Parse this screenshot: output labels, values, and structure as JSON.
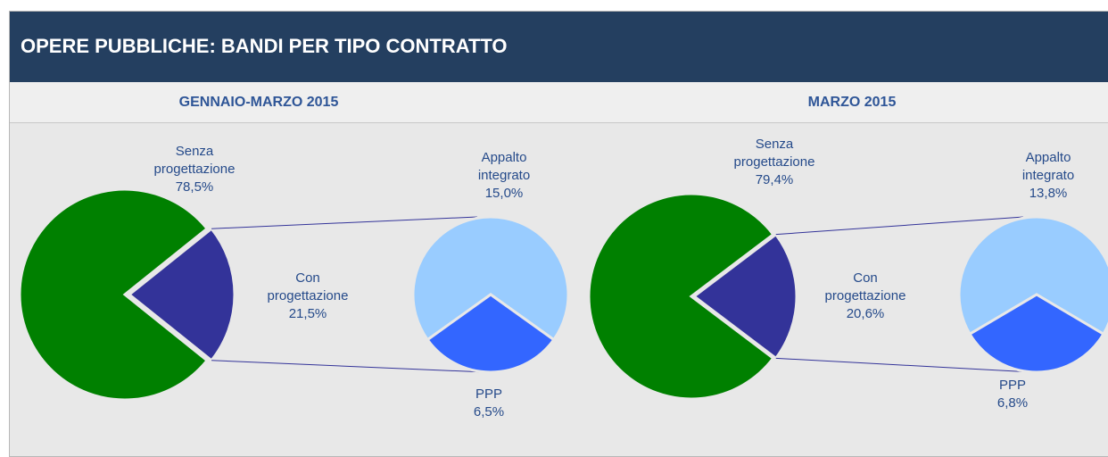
{
  "title": "OPERE PUBBLICHE: BANDI PER TIPO CONTRATTO",
  "chart_data": [
    {
      "type": "pie-of-pie",
      "title": "GENNAIO-MARZO 2015",
      "categories": [
        "Senza progettazione",
        "Con progettazione"
      ],
      "values": [
        78.5,
        21.5
      ],
      "value_labels": [
        "78,5%",
        "21,5%"
      ],
      "colors": [
        "#008000",
        "#333399"
      ],
      "secondary": {
        "categories": [
          "Appalto integrato",
          "PPP"
        ],
        "values": [
          15.0,
          6.5
        ],
        "value_labels": [
          "15,0%",
          "6,5%"
        ],
        "colors": [
          "#99ccff",
          "#3366ff"
        ]
      }
    },
    {
      "type": "pie-of-pie",
      "title": "MARZO 2015",
      "categories": [
        "Senza progettazione",
        "Con progettazione"
      ],
      "values": [
        79.4,
        20.6
      ],
      "value_labels": [
        "79,4%",
        "20,6%"
      ],
      "colors": [
        "#008000",
        "#333399"
      ],
      "secondary": {
        "categories": [
          "Appalto integrato",
          "PPP"
        ],
        "values": [
          13.8,
          6.8
        ],
        "value_labels": [
          "13,8%",
          "6,8%"
        ],
        "colors": [
          "#99ccff",
          "#3366ff"
        ]
      }
    }
  ]
}
